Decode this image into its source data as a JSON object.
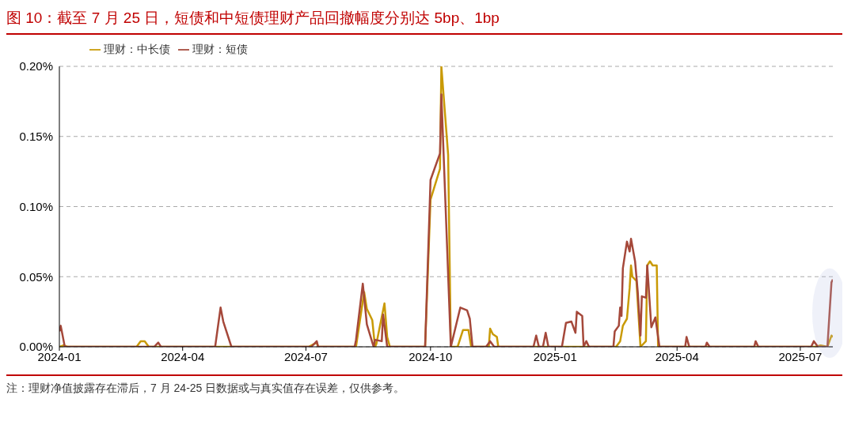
{
  "chart_data": {
    "type": "line",
    "title": "图 10：截至 7 月 25 日，短债和中短债理财产品回撤幅度分别达 5bp、1bp",
    "annotations": [
      "注：理财净值披露存在滞后，7 月 24-25 日数据或与真实值存在误差，仅供参考。"
    ],
    "xlim": [
      "2024-01-01",
      "2025-07-25"
    ],
    "xticks": [
      "2024-01",
      "2024-04",
      "2024-07",
      "2024-10",
      "2025-01",
      "2025-04",
      "2025-07"
    ],
    "ylim": [
      0,
      0.2
    ],
    "yticks": [
      {
        "value": 0,
        "label": "0.00%"
      },
      {
        "value": 0.05,
        "label": "0.05%"
      },
      {
        "value": 0.1,
        "label": "0.10%"
      },
      {
        "value": 0.15,
        "label": "0.15%"
      },
      {
        "value": 0.2,
        "label": "0.20%"
      }
    ],
    "grid": "y",
    "legend": "top",
    "marker": "none",
    "line_style": "solid",
    "series": [
      {
        "name": "理财：中长债",
        "color": "#c99a06",
        "x": [
          "2024-01-01",
          "2024-01-04",
          "2024-01-07",
          "2024-02-27",
          "2024-03-01",
          "2024-03-04",
          "2024-03-07",
          "2024-07-03",
          "2024-07-09",
          "2024-07-10",
          "2024-08-07",
          "2024-08-13",
          "2024-08-15",
          "2024-08-19",
          "2024-08-21",
          "2024-08-22",
          "2024-08-28",
          "2024-08-30",
          "2024-09-01",
          "2024-09-27",
          "2024-10-01",
          "2024-10-08",
          "2024-10-09",
          "2024-10-14",
          "2024-10-16",
          "2024-10-21",
          "2024-10-25",
          "2024-10-29",
          "2024-10-31",
          "2024-11-13",
          "2024-11-14",
          "2024-11-16",
          "2024-11-19",
          "2024-11-20",
          "2025-02-15",
          "2025-02-18",
          "2025-02-20",
          "2025-02-23",
          "2025-02-25",
          "2025-02-26",
          "2025-02-27",
          "2025-03-02",
          "2025-03-05",
          "2025-03-09",
          "2025-03-10",
          "2025-03-12",
          "2025-03-14",
          "2025-03-17",
          "2025-03-18",
          "2025-07-12",
          "2025-07-16",
          "2025-07-21",
          "2025-07-24",
          "2025-07-25"
        ],
        "values": [
          0,
          0.001,
          0,
          0,
          0.004,
          0.004,
          0,
          0,
          0.003,
          0,
          0,
          0.039,
          0.027,
          0.019,
          0,
          0.002,
          0.031,
          0.007,
          0,
          0,
          0.105,
          0.127,
          0.2,
          0.137,
          0,
          0,
          0.012,
          0.012,
          0,
          0,
          0.013,
          0.009,
          0.007,
          0,
          0,
          0.004,
          0.015,
          0.02,
          0.042,
          0.058,
          0.05,
          0.047,
          0,
          0.004,
          0.058,
          0.061,
          0.058,
          0.058,
          0,
          0,
          0.001,
          0,
          0.008,
          0.007
        ]
      },
      {
        "name": "理财：短债",
        "color": "#a5483a",
        "x": [
          "2024-01-01",
          "2024-01-02",
          "2024-01-05",
          "2024-03-11",
          "2024-03-14",
          "2024-03-16",
          "2024-04-25",
          "2024-04-29",
          "2024-05-01",
          "2024-05-07",
          "2024-07-05",
          "2024-07-09",
          "2024-07-10",
          "2024-08-06",
          "2024-08-07",
          "2024-08-12",
          "2024-08-15",
          "2024-08-20",
          "2024-08-21",
          "2024-08-26",
          "2024-08-27",
          "2024-08-30",
          "2024-09-27",
          "2024-10-01",
          "2024-10-08",
          "2024-10-09",
          "2024-10-16",
          "2024-10-23",
          "2024-10-28",
          "2024-10-30",
          "2024-11-01",
          "2024-11-11",
          "2024-11-14",
          "2024-11-17",
          "2024-12-16",
          "2024-12-18",
          "2024-12-20",
          "2024-12-23",
          "2024-12-25",
          "2024-12-27",
          "2025-01-06",
          "2025-01-09",
          "2025-01-13",
          "2025-01-16",
          "2025-01-17",
          "2025-01-21",
          "2025-01-22",
          "2025-01-24",
          "2025-01-26",
          "2025-02-13",
          "2025-02-14",
          "2025-02-17",
          "2025-02-18",
          "2025-02-19",
          "2025-02-20",
          "2025-02-23",
          "2025-02-25",
          "2025-02-26",
          "2025-03-01",
          "2025-03-03",
          "2025-03-05",
          "2025-03-06",
          "2025-03-09",
          "2025-03-10",
          "2025-03-13",
          "2025-03-16",
          "2025-03-19",
          "2025-04-07",
          "2025-04-08",
          "2025-04-10",
          "2025-04-22",
          "2025-04-23",
          "2025-04-25",
          "2025-05-28",
          "2025-05-29",
          "2025-05-31",
          "2025-07-09",
          "2025-07-11",
          "2025-07-14",
          "2025-07-21",
          "2025-07-24",
          "2025-07-25"
        ],
        "values": [
          0.011,
          0.015,
          0,
          0,
          0.003,
          0,
          0,
          0.028,
          0.018,
          0,
          0,
          0.004,
          0,
          0,
          0.005,
          0.045,
          0.016,
          0,
          0.005,
          0.004,
          0.023,
          0,
          0,
          0.119,
          0.138,
          0.18,
          0,
          0.028,
          0.026,
          0.02,
          0,
          0,
          0.004,
          0,
          0,
          0.008,
          0,
          0,
          0.01,
          0,
          0,
          0.017,
          0.018,
          0.01,
          0.025,
          0.022,
          0,
          0.004,
          0,
          0,
          0.011,
          0.015,
          0.028,
          0.022,
          0.056,
          0.075,
          0.068,
          0.077,
          0.061,
          0.039,
          0.008,
          0.036,
          0.035,
          0.058,
          0.014,
          0.021,
          0,
          0,
          0.007,
          0,
          0,
          0.003,
          0,
          0,
          0.004,
          0,
          0,
          0.004,
          0,
          0,
          0.046,
          0.048
        ]
      }
    ]
  }
}
